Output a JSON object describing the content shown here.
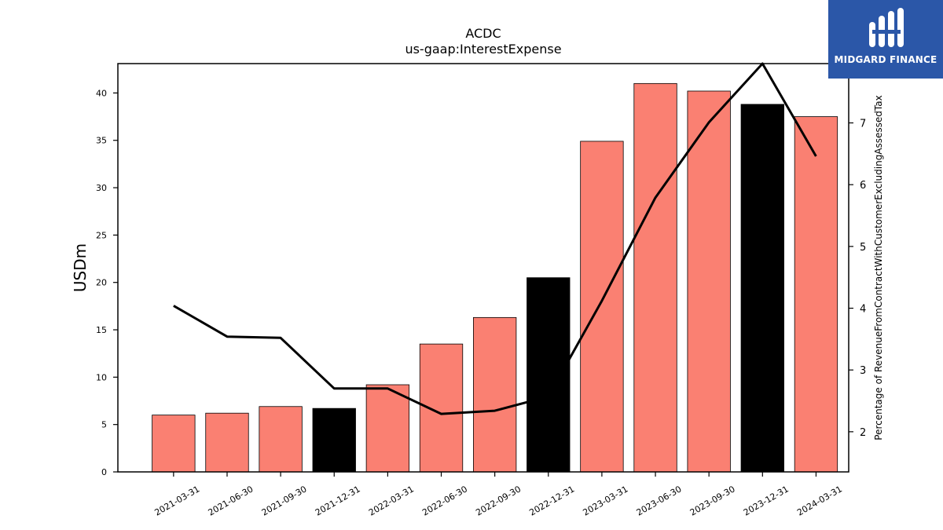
{
  "chart_data": {
    "type": "bar",
    "title": "ACDC",
    "subtitle": "us-gaap:InterestExpense",
    "ylabel": "USDm",
    "y2label": "Percentage of RevenueFromContractWithCustomerExcludingAssessedTax",
    "categories": [
      "2021-03-31",
      "2021-06-30",
      "2021-09-30",
      "2021-12-31",
      "2022-03-31",
      "2022-06-30",
      "2022-09-30",
      "2022-12-31",
      "2023-03-31",
      "2023-06-30",
      "2023-09-30",
      "2023-12-31",
      "2024-03-31"
    ],
    "series": [
      {
        "type": "bar",
        "values": [
          6.0,
          6.2,
          6.9,
          6.7,
          9.2,
          13.5,
          16.3,
          20.5,
          34.9,
          41.0,
          40.2,
          38.8,
          37.5
        ],
        "colors": [
          "#fa8072",
          "#fa8072",
          "#fa8072",
          "#000000",
          "#fa8072",
          "#fa8072",
          "#fa8072",
          "#000000",
          "#fa8072",
          "#fa8072",
          "#fa8072",
          "#000000",
          "#fa8072"
        ]
      },
      {
        "type": "line",
        "axis": "right",
        "color": "#000000",
        "values": [
          4.04,
          3.54,
          3.52,
          2.7,
          2.7,
          2.29,
          2.34,
          2.57,
          4.12,
          5.79,
          7.01,
          7.96,
          6.46
        ]
      }
    ],
    "ylim": [
      0,
      43.1
    ],
    "yticks": [
      0,
      5,
      10,
      15,
      20,
      25,
      30,
      35,
      40
    ],
    "y2lim": [
      1.35,
      7.96
    ],
    "y2ticks": [
      2,
      3,
      4,
      5,
      6,
      7
    ],
    "grid": false
  },
  "logo": {
    "text": "MIDGARD FINANCE"
  }
}
